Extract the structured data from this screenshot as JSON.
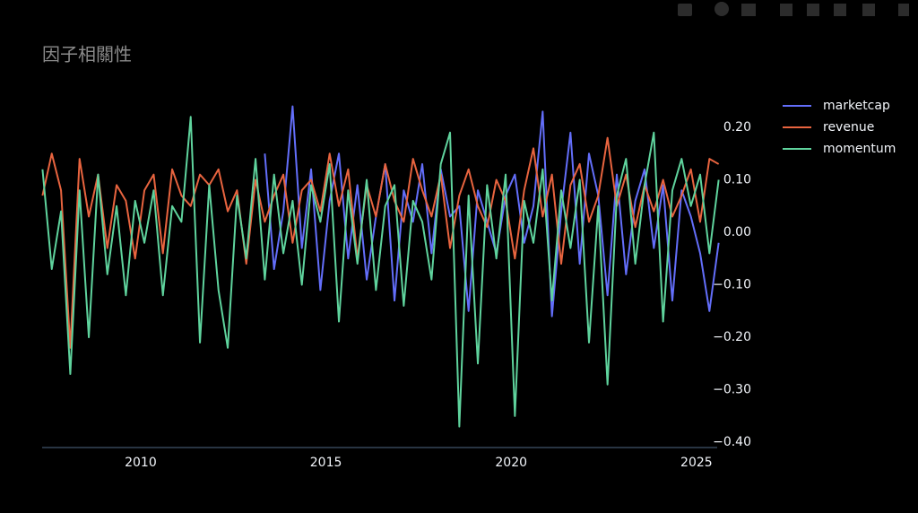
{
  "chart_data": {
    "type": "line",
    "title": "因子相關性",
    "x": [
      2007.35,
      2007.6,
      2007.85,
      2008.1,
      2008.35,
      2008.6,
      2008.85,
      2009.1,
      2009.35,
      2009.6,
      2009.85,
      2010.1,
      2010.35,
      2010.6,
      2010.85,
      2011.1,
      2011.35,
      2011.6,
      2011.85,
      2012.1,
      2012.35,
      2012.6,
      2012.85,
      2013.1,
      2013.35,
      2013.6,
      2013.85,
      2014.1,
      2014.35,
      2014.6,
      2014.85,
      2015.1,
      2015.35,
      2015.6,
      2015.85,
      2016.1,
      2016.35,
      2016.6,
      2016.85,
      2017.1,
      2017.35,
      2017.6,
      2017.85,
      2018.1,
      2018.35,
      2018.6,
      2018.85,
      2019.1,
      2019.35,
      2019.6,
      2019.85,
      2020.1,
      2020.35,
      2020.6,
      2020.85,
      2021.1,
      2021.35,
      2021.6,
      2021.85,
      2022.1,
      2022.35,
      2022.6,
      2022.85,
      2023.1,
      2023.35,
      2023.6,
      2023.85,
      2024.1,
      2024.35,
      2024.6,
      2024.85,
      2025.1,
      2025.35,
      2025.6
    ],
    "series": [
      {
        "name": "marketcap",
        "color": "#636efa",
        "values": [
          null,
          null,
          null,
          null,
          null,
          null,
          null,
          null,
          null,
          null,
          null,
          null,
          null,
          null,
          null,
          null,
          null,
          null,
          null,
          null,
          null,
          null,
          null,
          null,
          0.15,
          -0.07,
          0.04,
          0.24,
          -0.03,
          0.12,
          -0.11,
          0.06,
          0.15,
          -0.05,
          0.09,
          -0.09,
          0.03,
          0.13,
          -0.13,
          0.08,
          0.02,
          0.13,
          -0.04,
          0.12,
          0.03,
          0.05,
          -0.15,
          0.08,
          0.02,
          -0.04,
          0.07,
          0.11,
          -0.02,
          0.05,
          0.23,
          -0.16,
          0.04,
          0.19,
          -0.06,
          0.15,
          0.07,
          -0.12,
          0.11,
          -0.08,
          0.06,
          0.12,
          -0.03,
          0.09,
          -0.13,
          0.08,
          0.03,
          -0.04,
          -0.15,
          -0.02
        ]
      },
      {
        "name": "revenue",
        "color": "#e8643f",
        "values": [
          0.07,
          0.15,
          0.08,
          -0.22,
          0.14,
          0.03,
          0.11,
          -0.03,
          0.09,
          0.06,
          -0.05,
          0.08,
          0.11,
          -0.04,
          0.12,
          0.07,
          0.05,
          0.11,
          0.09,
          0.12,
          0.04,
          0.08,
          -0.06,
          0.1,
          0.02,
          0.07,
          0.11,
          -0.02,
          0.08,
          0.1,
          0.04,
          0.15,
          0.05,
          0.12,
          -0.05,
          0.09,
          0.03,
          0.13,
          0.06,
          0.02,
          0.14,
          0.08,
          0.03,
          0.11,
          -0.03,
          0.07,
          0.12,
          0.05,
          0.01,
          0.1,
          0.06,
          -0.05,
          0.08,
          0.16,
          0.03,
          0.11,
          -0.06,
          0.09,
          0.13,
          0.02,
          0.07,
          0.18,
          0.05,
          0.11,
          0.01,
          0.09,
          0.04,
          0.1,
          0.03,
          0.07,
          0.12,
          0.02,
          0.14,
          0.13
        ]
      },
      {
        "name": "momentum",
        "color": "#5fd39d",
        "values": [
          0.12,
          -0.07,
          0.04,
          -0.27,
          0.08,
          -0.2,
          0.11,
          -0.08,
          0.05,
          -0.12,
          0.06,
          -0.02,
          0.08,
          -0.12,
          0.05,
          0.02,
          0.22,
          -0.21,
          0.09,
          -0.11,
          -0.22,
          0.07,
          -0.05,
          0.14,
          -0.09,
          0.11,
          -0.04,
          0.06,
          -0.1,
          0.09,
          0.02,
          0.13,
          -0.17,
          0.08,
          -0.06,
          0.1,
          -0.11,
          0.05,
          0.09,
          -0.14,
          0.06,
          0.02,
          -0.09,
          0.13,
          0.19,
          -0.37,
          0.07,
          -0.25,
          0.09,
          -0.05,
          0.11,
          -0.35,
          0.06,
          -0.02,
          0.12,
          -0.13,
          0.08,
          -0.03,
          0.1,
          -0.21,
          0.05,
          -0.29,
          0.07,
          0.14,
          -0.06,
          0.09,
          0.19,
          -0.17,
          0.08,
          0.14,
          0.05,
          0.11,
          -0.04,
          0.1
        ]
      }
    ],
    "xlim": [
      2007.34,
      2025.56
    ],
    "xticks": [
      2010,
      2015,
      2020,
      2025
    ],
    "ylim": [
      -0.41,
      0.27
    ],
    "yticks": [
      {
        "value": -0.4,
        "label": "−0.40"
      },
      {
        "value": -0.3,
        "label": "−0.30"
      },
      {
        "value": -0.2,
        "label": "−0.20"
      },
      {
        "value": -0.1,
        "label": "−0.10"
      },
      {
        "value": 0,
        "label": "0.00"
      },
      {
        "value": 0.1,
        "label": "0.10"
      },
      {
        "value": 0.2,
        "label": "0.20"
      }
    ],
    "grid": false,
    "y_axis_side": "right",
    "legend": "top-right"
  }
}
